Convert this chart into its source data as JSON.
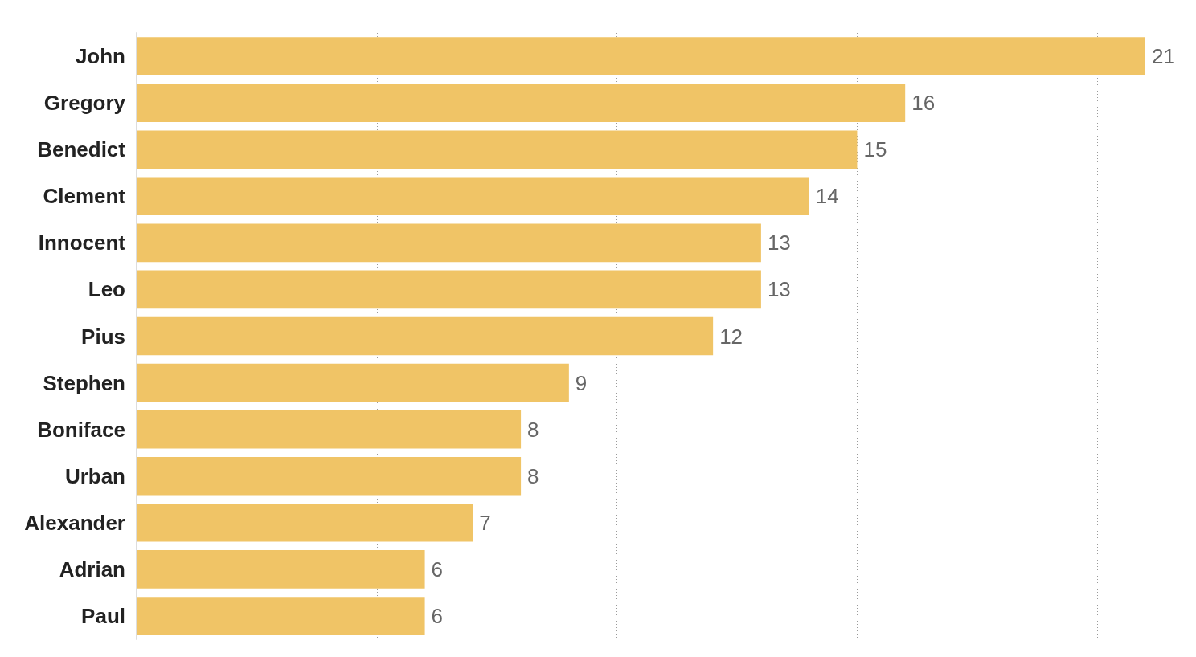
{
  "chart_data": {
    "type": "bar",
    "orientation": "horizontal",
    "categories": [
      "John",
      "Gregory",
      "Benedict",
      "Clement",
      "Innocent",
      "Leo",
      "Pius",
      "Stephen",
      "Boniface",
      "Urban",
      "Alexander",
      "Adrian",
      "Paul"
    ],
    "values": [
      21,
      16,
      15,
      14,
      13,
      13,
      12,
      9,
      8,
      8,
      7,
      6,
      6
    ],
    "color": "#f0c466",
    "data_labels": true,
    "xticks": [
      {
        "value": 0,
        "label": null
      },
      {
        "value": 5,
        "label": null
      },
      {
        "value": 10,
        "label": null
      },
      {
        "value": 15,
        "label": null
      },
      {
        "value": 20,
        "label": null
      }
    ],
    "grid": "x",
    "tick_labels": "y"
  }
}
